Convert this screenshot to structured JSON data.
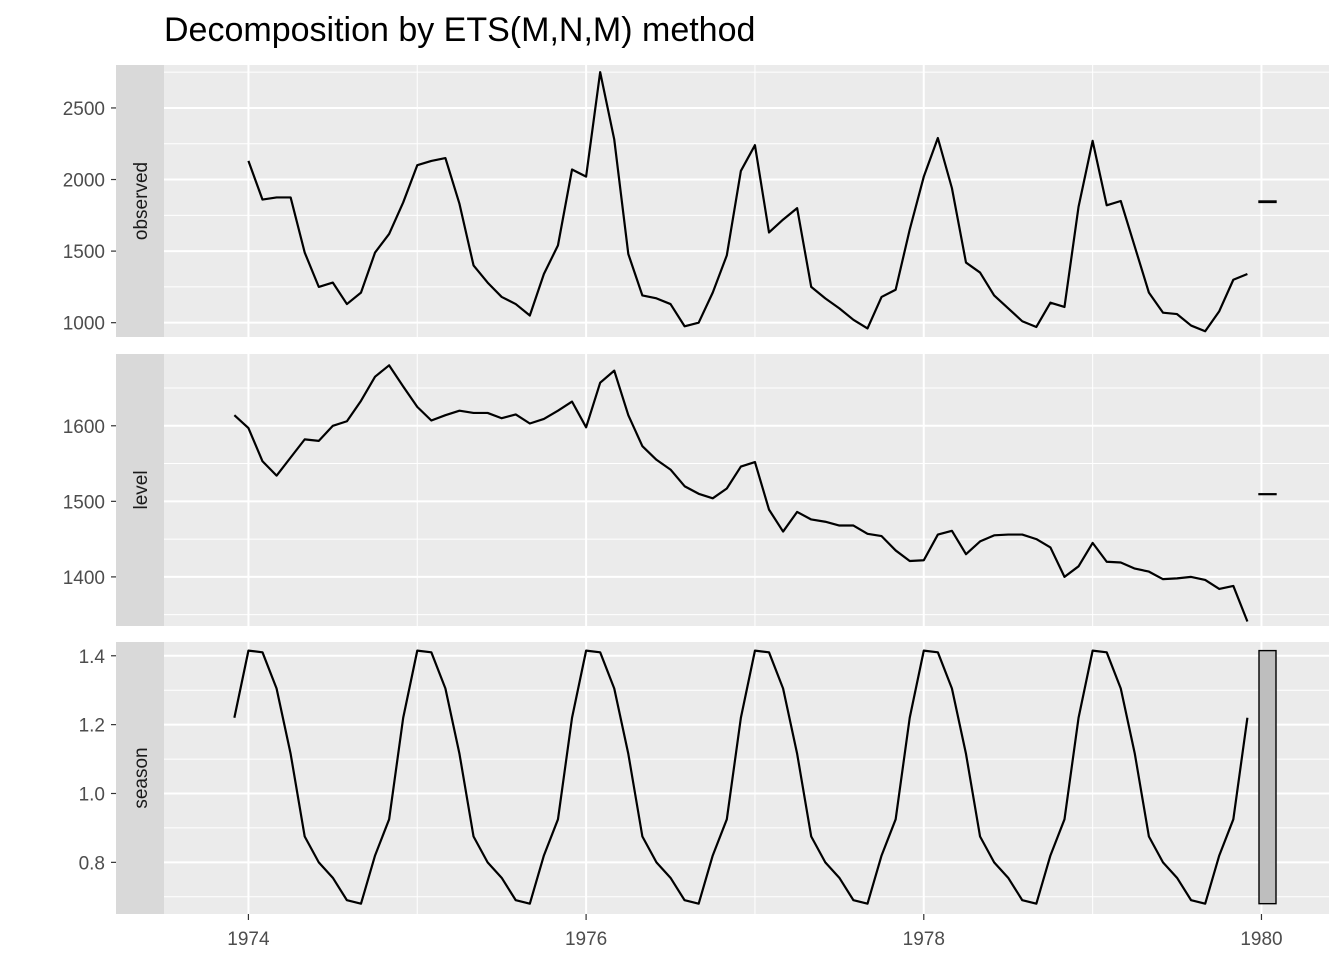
{
  "chart_data": {
    "type": "line",
    "title": "Decomposition by ETS(M,N,M) method",
    "xlabel": "",
    "ylabel": "",
    "x_ticks": [
      "1974",
      "1976",
      "1978",
      "1980"
    ],
    "x_tick_values": [
      1974,
      1976,
      1978,
      1980
    ],
    "xlim": [
      1973.5,
      1980.4
    ],
    "grid": true,
    "background": "#EBEBEB",
    "strip_color": "#D9D9D9",
    "line_color": "#000000",
    "panels": [
      {
        "name": "observed",
        "start": 1974.0,
        "step": 0.0833333,
        "ylim": [
          900,
          2800
        ],
        "y_ticks": [
          "1000",
          "1500",
          "2000",
          "2500"
        ],
        "y_tick_values": [
          1000,
          1500,
          2000,
          2500
        ],
        "values": [
          2130,
          1860,
          1875,
          1875,
          1490,
          1250,
          1280,
          1130,
          1210,
          1490,
          1620,
          1840,
          2100,
          2130,
          2150,
          1830,
          1400,
          1280,
          1180,
          1130,
          1050,
          1340,
          1540,
          2070,
          2020,
          2750,
          2280,
          1480,
          1190,
          1170,
          1130,
          975,
          1000,
          1210,
          1470,
          2060,
          2240,
          1630,
          1720,
          1800,
          1250,
          1170,
          1100,
          1020,
          960,
          1180,
          1230,
          1650,
          2020,
          2290,
          1940,
          1420,
          1350,
          1190,
          1100,
          1010,
          970,
          1140,
          1110,
          1810,
          2270,
          1820,
          1850,
          1530,
          1210,
          1070,
          1060,
          980,
          940,
          1080,
          1300,
          1340
        ],
        "range_bar": {
          "low": 1840,
          "high": 1850
        }
      },
      {
        "name": "level",
        "start": 1973.9167,
        "step": 0.0833333,
        "ylim": [
          1335,
          1695
        ],
        "y_ticks": [
          "1400",
          "1500",
          "1600"
        ],
        "y_tick_values": [
          1400,
          1500,
          1600
        ],
        "values": [
          1614,
          1597,
          1553,
          1534,
          1558,
          1582,
          1580,
          1600,
          1606,
          1633,
          1665,
          1680,
          1652,
          1625,
          1607,
          1614,
          1620,
          1617,
          1617,
          1610,
          1615,
          1603,
          1609,
          1620,
          1632,
          1598,
          1657,
          1673,
          1614,
          1573,
          1555,
          1542,
          1520,
          1510,
          1504,
          1517,
          1546,
          1552,
          1489,
          1460,
          1486,
          1476,
          1473,
          1468,
          1468,
          1457,
          1454,
          1435,
          1421,
          1422,
          1456,
          1461,
          1430,
          1447,
          1455,
          1456,
          1456,
          1450,
          1439,
          1400,
          1414,
          1445,
          1420,
          1419,
          1411,
          1407,
          1397,
          1398,
          1400,
          1396,
          1384,
          1388,
          1341
        ],
        "range_bar": {
          "low": 1509,
          "high": 1510
        }
      },
      {
        "name": "season",
        "start": 1973.9167,
        "step": 0.0833333,
        "ylim": [
          0.65,
          1.44
        ],
        "y_ticks": [
          "0.8",
          "1.0",
          "1.2",
          "1.4"
        ],
        "y_tick_values": [
          0.8,
          1.0,
          1.2,
          1.4
        ],
        "values": [
          1.22,
          1.415,
          1.41,
          1.305,
          1.115,
          0.875,
          0.8,
          0.755,
          0.69,
          0.68,
          0.82,
          0.925,
          1.22,
          1.415,
          1.41,
          1.305,
          1.115,
          0.875,
          0.8,
          0.755,
          0.69,
          0.68,
          0.82,
          0.925,
          1.22,
          1.415,
          1.41,
          1.305,
          1.115,
          0.875,
          0.8,
          0.755,
          0.69,
          0.68,
          0.82,
          0.925,
          1.22,
          1.415,
          1.41,
          1.305,
          1.115,
          0.875,
          0.8,
          0.755,
          0.69,
          0.68,
          0.82,
          0.925,
          1.22,
          1.415,
          1.41,
          1.305,
          1.115,
          0.875,
          0.8,
          0.755,
          0.69,
          0.68,
          0.82,
          0.925,
          1.22,
          1.415,
          1.41,
          1.305,
          1.115,
          0.875,
          0.8,
          0.755,
          0.69,
          0.68,
          0.82,
          0.925,
          1.22
        ],
        "range_bar": {
          "low": 0.68,
          "high": 1.415,
          "fill": "#BEBEBE"
        }
      }
    ]
  }
}
